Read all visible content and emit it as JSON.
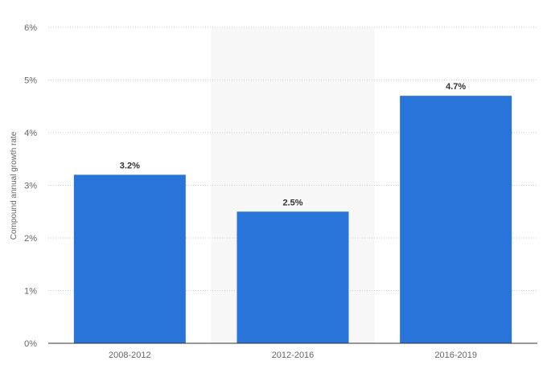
{
  "chart_data": {
    "type": "bar",
    "title": "",
    "xlabel": "",
    "ylabel": "Compound annual growth rate",
    "categories": [
      "2008-2012",
      "2012-2016",
      "2016-2019"
    ],
    "values": [
      3.2,
      2.5,
      4.7
    ],
    "value_labels": [
      "3.2%",
      "2.5%",
      "4.7%"
    ],
    "y_ticks": [
      0,
      1,
      2,
      3,
      4,
      5,
      6
    ],
    "y_tick_labels": [
      "0%",
      "1%",
      "2%",
      "3%",
      "4%",
      "5%",
      "6%"
    ],
    "ylim": [
      0,
      6
    ],
    "grid": "horizontal dotted",
    "highlighted_category": "2012-2016",
    "legend": "none"
  },
  "colors": {
    "bar": "#2874d9",
    "highlight_band": "#f7f7f7",
    "grid": "#cccccc",
    "axis": "#333333"
  }
}
